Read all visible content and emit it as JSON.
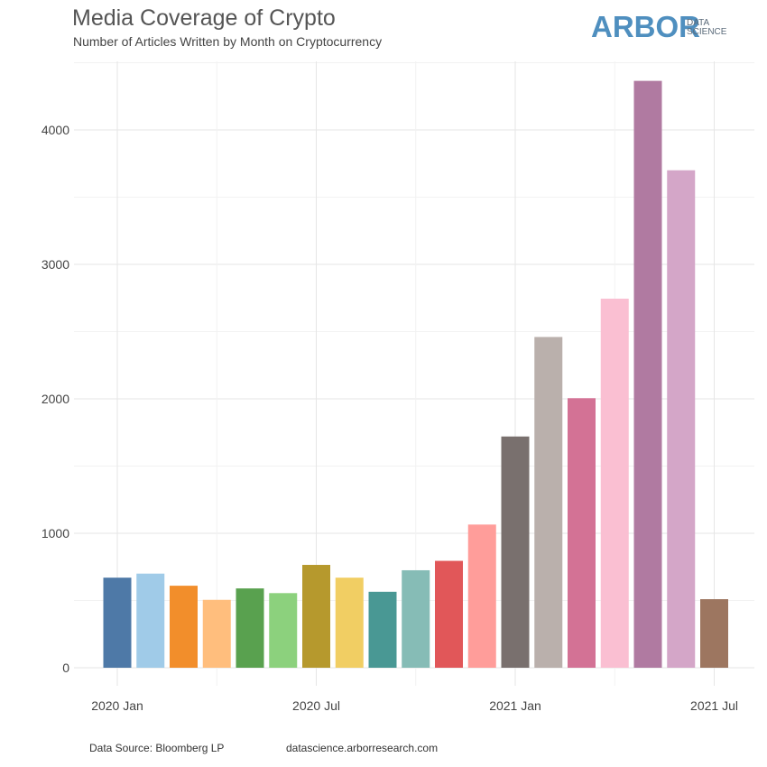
{
  "header": {
    "title": "Media Coverage of Crypto",
    "subtitle": "Number of Articles Written by Month on Cryptocurrency"
  },
  "logo": {
    "main": "ARBOR",
    "sub_line1": "DATA",
    "sub_line2": "SCIENCE",
    "color": "#4f8fbf"
  },
  "footer": {
    "source": "Data Source: Bloomberg LP",
    "url": "datascience.arborresearch.com"
  },
  "chart_data": {
    "type": "bar",
    "title": "Media Coverage of Crypto",
    "subtitle": "Number of Articles Written by Month on Cryptocurrency",
    "xlabel": "",
    "ylabel": "",
    "categories": [
      "2020-01",
      "2020-02",
      "2020-03",
      "2020-04",
      "2020-05",
      "2020-06",
      "2020-07",
      "2020-08",
      "2020-09",
      "2020-10",
      "2020-11",
      "2020-12",
      "2021-01",
      "2021-02",
      "2021-03",
      "2021-04",
      "2021-05",
      "2021-06",
      "2021-07"
    ],
    "values": [
      670,
      700,
      610,
      505,
      590,
      555,
      765,
      670,
      565,
      725,
      795,
      1065,
      1720,
      2460,
      2005,
      2745,
      4365,
      3700,
      510
    ],
    "colors": [
      "#4e79a7",
      "#a0cbe8",
      "#f28e2b",
      "#ffbe7d",
      "#59a14f",
      "#8cd17d",
      "#b6992d",
      "#f1ce63",
      "#499894",
      "#86bcb6",
      "#e15759",
      "#ff9d9a",
      "#79706e",
      "#bab0ac",
      "#d37295",
      "#fabfd2",
      "#b07aa1",
      "#d4a6c8",
      "#9d7660"
    ],
    "ylim": [
      0,
      4450
    ],
    "yticks": [
      0,
      1000,
      2000,
      3000,
      4000
    ],
    "yticklabels": [
      "0",
      "1000",
      "2000",
      "3000",
      "4000"
    ],
    "xticks": [
      "2020-01",
      "2020-07",
      "2021-01",
      "2021-07"
    ],
    "xticklabels": [
      "2020 Jan",
      "2020 Jul",
      "2021 Jan",
      "2021 Jul"
    ],
    "grid": true,
    "legend": "none"
  }
}
